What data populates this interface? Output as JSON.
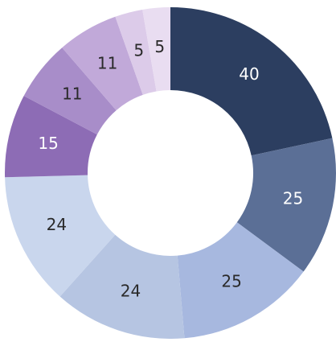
{
  "chart_data": {
    "type": "donut",
    "values": [
      40,
      25,
      25,
      24,
      24,
      15,
      11,
      11,
      5,
      5
    ],
    "colors": [
      "#2c3e60",
      "#5b6f96",
      "#a7b8df",
      "#b6c5e2",
      "#c9d6ed",
      "#8d6cb5",
      "#a88dc9",
      "#c1a9d9",
      "#dccbe9",
      "#e9ddf1"
    ]
  }
}
